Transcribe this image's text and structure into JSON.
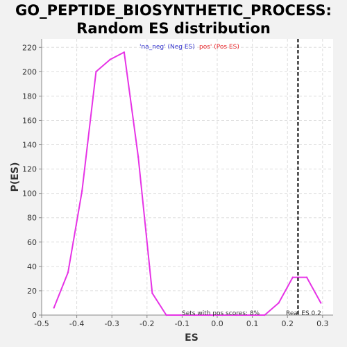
{
  "chart_data": {
    "type": "line",
    "title_line1": "GO_PEPTIDE_BIOSYNTHETIC_PROCESS:",
    "title_line2": "Random ES distribution",
    "xlabel": "ES",
    "ylabel": "P(ES)",
    "xlim": [
      -0.5,
      0.33
    ],
    "ylim": [
      0,
      227
    ],
    "xticks": [
      -0.5,
      -0.4,
      -0.3,
      -0.2,
      -0.1,
      0.0,
      0.1,
      0.2,
      0.3
    ],
    "xtick_labels": [
      "-0.5",
      "-0.4",
      "-0.3",
      "-0.2",
      "-0.1",
      "0.0",
      "0.1",
      "0.2",
      "0.3"
    ],
    "yticks": [
      0,
      20,
      40,
      60,
      80,
      100,
      120,
      140,
      160,
      180,
      200,
      220
    ],
    "ytick_labels": [
      "0",
      "20",
      "40",
      "60",
      "80",
      "100",
      "120",
      "140",
      "160",
      "180",
      "200",
      "220"
    ],
    "grid": true,
    "legend": {
      "neg_label": "'na_neg' (Neg ES)",
      "pos_label": "pos' (Pos ES)",
      "neg_color": "#3333cc",
      "pos_color": "#e8262a"
    },
    "series": [
      {
        "color": "#e633e6",
        "x": [
          -0.465,
          -0.425,
          -0.385,
          -0.345,
          -0.305,
          -0.265,
          -0.225,
          -0.185,
          -0.145,
          -0.105,
          -0.065,
          -0.025,
          0.015,
          0.055,
          0.095,
          0.135,
          0.175,
          0.215,
          0.255,
          0.295
        ],
        "y": [
          6,
          35,
          102,
          200,
          210,
          216,
          130,
          18,
          0,
          0,
          0,
          0,
          0,
          0,
          0,
          0,
          10,
          31,
          31,
          10
        ]
      }
    ],
    "real_es": {
      "value": 0.23,
      "label": "Real ES 0.2",
      "color": "#000000"
    },
    "annotation": "Sets with pos scores: 8%"
  }
}
